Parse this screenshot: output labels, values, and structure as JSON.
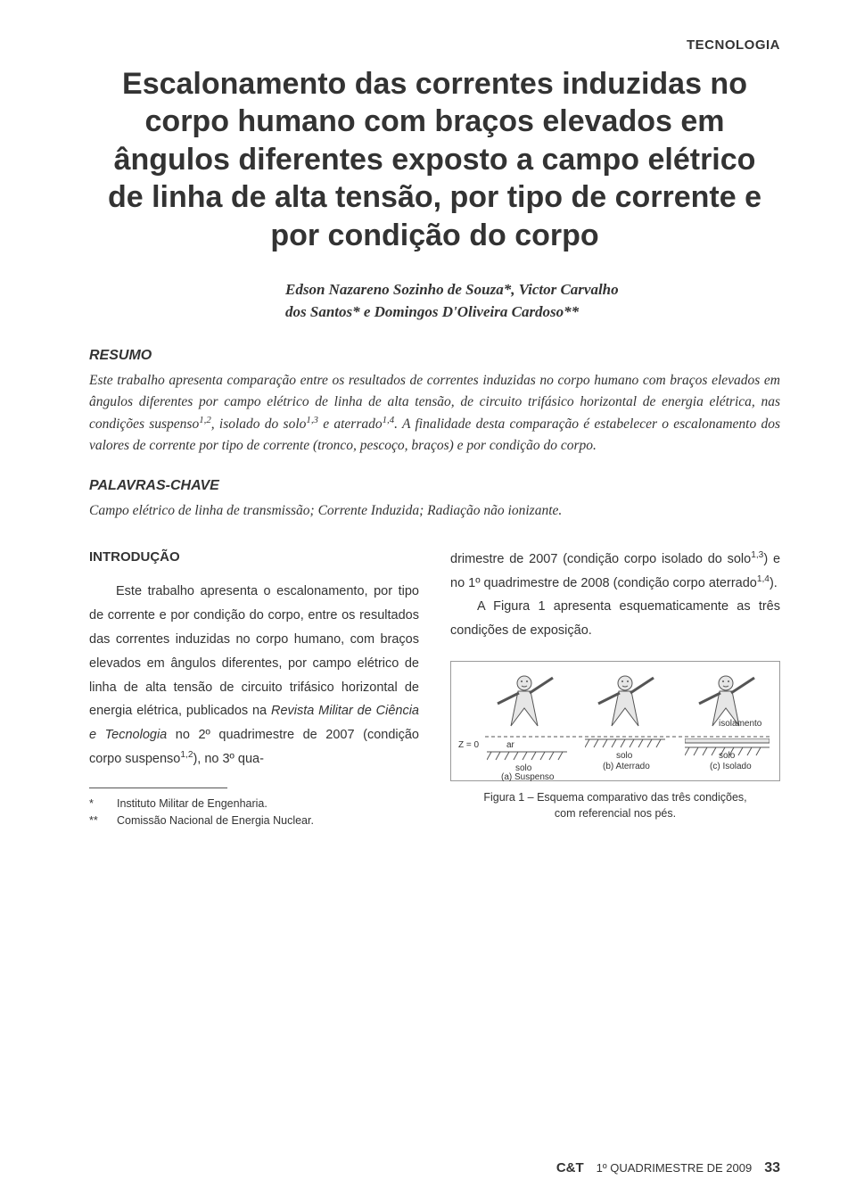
{
  "kicker": "TECNOLOGIA",
  "title": "Escalonamento das correntes induzidas no corpo humano com braços elevados em ângulos diferentes exposto a campo elétrico de linha de alta tensão, por tipo de corrente e por condição do corpo",
  "authors_line1": "Edson Nazareno Sozinho de Souza*, Victor Carvalho",
  "authors_line2": "dos Santos* e Domingos D'Oliveira Cardoso**",
  "resumo_head": "RESUMO",
  "abstract_html": "Este trabalho apresenta comparação entre os resultados de correntes induzidas no corpo humano com braços elevados em ângulos diferentes por campo elétrico de linha de alta tensão, de circuito trifásico horizontal de energia elétrica, nas condições suspenso<sup>1,2</sup>, isolado do solo<sup>1,3</sup> e aterrado<sup>1,4</sup>. A finalidade desta comparação é estabelecer o escalonamento dos valores de corrente por tipo de corrente (tronco, pescoço, braços) e por condição do corpo.",
  "palavras_head": "PALAVRAS-CHAVE",
  "keywords_text": "Campo elétrico de linha de transmissão; Corrente Induzida; Radiação não ionizante.",
  "intro_head": "INTRODUÇÃO",
  "intro_left_html": "<span class=\"indent\">Este trabalho apresenta o escalonamento, por tipo de corrente e por condição do corpo, entre os resultados das correntes induzidas no corpo humano, com braços elevados em ângulos diferentes, por campo elétrico de linha de alta tensão de circuito trifásico horizontal de energia elétrica, publicados na <i>Revista Militar de Ciência e Tecnologia</i> no 2º quadrimestre de 2007 (condição corpo suspenso<sup>1,2</sup>), no 3º qua-</span>",
  "intro_right_html": "drimestre de 2007 (condição corpo isolado do solo<sup>1,3</sup>) e no 1º quadrimestre de 2008 (condição corpo aterrado<sup>1,4</sup>).<span class=\"indent\">A Figura 1 apresenta esquematicamente as três condições de exposição.</span>",
  "affil1_mark": "*",
  "affil1_text": "Instituto Militar de Engenharia.",
  "affil2_mark": "**",
  "affil2_text": "Comissão Nacional de Energia Nuclear.",
  "figure": {
    "z_label": "Z = 0",
    "ar_label": "ar",
    "solo_label": "solo",
    "isolamento_label": "isolamento",
    "panel_a": "(a) Suspenso",
    "panel_b": "(b) Aterrado",
    "panel_c": "(c) Isolado",
    "caption_line1": "Figura 1 – Esquema comparativo das três condições,",
    "caption_line2": "com referencial nos pés.",
    "stroke": "#555555",
    "fill_body": "#e6e6e6"
  },
  "footer": {
    "logo": "C&T",
    "issue": "1º QUADRIMESTRE DE 2009",
    "page": "33"
  }
}
